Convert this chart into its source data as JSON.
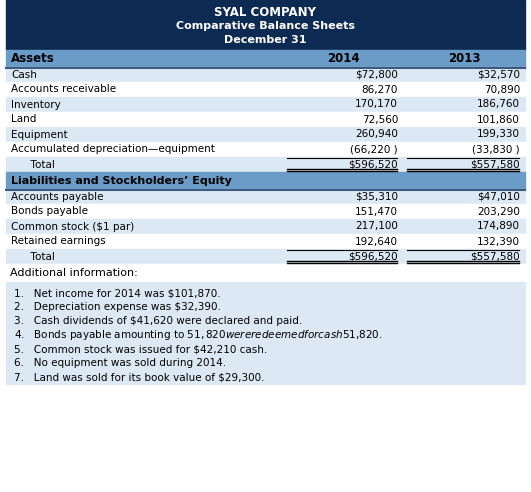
{
  "title_line1": "SYAL COMPANY",
  "title_line2": "Comparative Balance Sheets",
  "title_line3": "December 31",
  "header_bg": "#0d2b52",
  "header_text_color": "#ffffff",
  "col_header_bg": "#6b9cc7",
  "col_header_text_color": "#000000",
  "row_bg_light": "#dce9f5",
  "row_bg_white": "#ffffff",
  "assets_label": "Assets",
  "assets_rows": [
    [
      "Cash",
      "$72,800",
      "$32,570"
    ],
    [
      "Accounts receivable",
      "86,270",
      "70,890"
    ],
    [
      "Inventory",
      "170,170",
      "186,760"
    ],
    [
      "Land",
      "72,560",
      "101,860"
    ],
    [
      "Equipment",
      "260,940",
      "199,330"
    ],
    [
      "Accumulated depreciation—equipment",
      "(66,220 )",
      "(33,830 )"
    ],
    [
      "  Total",
      "$596,520",
      "$557,580"
    ]
  ],
  "liabilities_label": "Liabilities and Stockholders’ Equity",
  "liabilities_rows": [
    [
      "Accounts payable",
      "$35,310",
      "$47,010"
    ],
    [
      "Bonds payable",
      "151,470",
      "203,290"
    ],
    [
      "Common stock ($1 par)",
      "217,100",
      "174,890"
    ],
    [
      "Retained earnings",
      "192,640",
      "132,390"
    ],
    [
      "  Total",
      "$596,520",
      "$557,580"
    ]
  ],
  "additional_label": "Additional information:",
  "additional_bg": "#dce9f5",
  "additional_items": [
    "1.   Net income for 2014 was $101,870.",
    "2.   Depreciation expense was $32,390.",
    "3.   Cash dividends of $41,620 were declared and paid.",
    "4.   Bonds payable amounting to $51,820 were redeemed for cash $51,820.",
    "5.   Common stock was issued for $42,210 cash.",
    "6.   No equipment was sold during 2014.",
    "7.   Land was sold for its book value of $29,300."
  ]
}
